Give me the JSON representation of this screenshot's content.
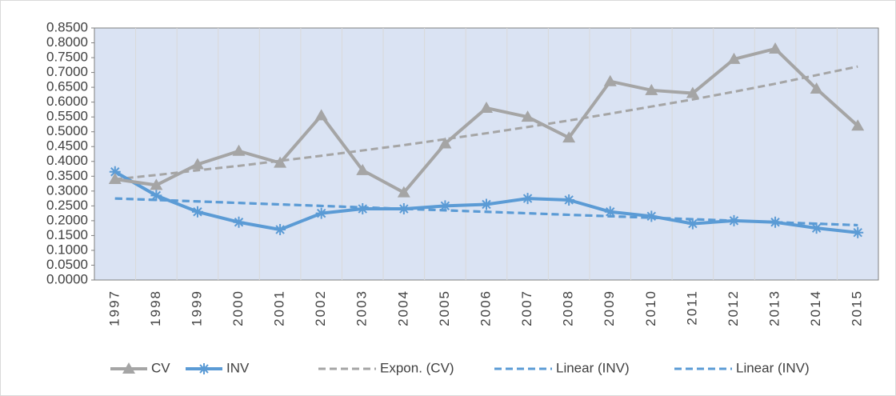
{
  "chart_data": {
    "type": "line",
    "categories": [
      "1997",
      "1998",
      "1999",
      "2000",
      "2001",
      "2002",
      "2003",
      "2004",
      "2005",
      "2006",
      "2007",
      "2008",
      "2009",
      "2010",
      "2011",
      "2012",
      "2013",
      "2014",
      "2015"
    ],
    "series": [
      {
        "name": "CV",
        "color": "#a5a5a5",
        "marker": "triangle",
        "values": [
          0.34,
          0.32,
          0.39,
          0.435,
          0.395,
          0.555,
          0.37,
          0.295,
          0.46,
          0.58,
          0.55,
          0.48,
          0.67,
          0.64,
          0.63,
          0.745,
          0.78,
          0.645,
          0.52
        ]
      },
      {
        "name": "INV",
        "color": "#5b9bd5",
        "marker": "asterisk",
        "values": [
          0.365,
          0.285,
          0.23,
          0.195,
          0.17,
          0.225,
          0.24,
          0.24,
          0.25,
          0.255,
          0.275,
          0.27,
          0.23,
          0.215,
          0.19,
          0.2,
          0.195,
          0.175,
          0.16
        ]
      },
      {
        "name": "Expon. (CV)",
        "color": "#a5a5a5",
        "dashed": true,
        "values": [
          0.34,
          0.354,
          0.37,
          0.385,
          0.402,
          0.419,
          0.437,
          0.455,
          0.475,
          0.495,
          0.516,
          0.538,
          0.561,
          0.585,
          0.609,
          0.635,
          0.662,
          0.691,
          0.72
        ]
      },
      {
        "name": "Linear (INV)",
        "color": "#5b9bd5",
        "dashed": true,
        "values": [
          0.275,
          0.27,
          0.265,
          0.26,
          0.255,
          0.25,
          0.245,
          0.24,
          0.235,
          0.23,
          0.225,
          0.22,
          0.215,
          0.21,
          0.205,
          0.2,
          0.195,
          0.19,
          0.185
        ]
      },
      {
        "name": "Linear (INV)",
        "color": "#5b9bd5",
        "dashed": true,
        "values": [
          0.275,
          0.27,
          0.265,
          0.26,
          0.255,
          0.25,
          0.245,
          0.24,
          0.235,
          0.23,
          0.225,
          0.22,
          0.215,
          0.21,
          0.205,
          0.2,
          0.195,
          0.19,
          0.185
        ]
      }
    ],
    "ylim": [
      0,
      0.85
    ],
    "yticks": [
      {
        "value": 0,
        "label": "0.0000"
      },
      {
        "value": 0.05,
        "label": "0.0500"
      },
      {
        "value": 0.1,
        "label": "0.1000"
      },
      {
        "value": 0.15,
        "label": "0.1500"
      },
      {
        "value": 0.2,
        "label": "0.2000"
      },
      {
        "value": 0.25,
        "label": "0.2500"
      },
      {
        "value": 0.3,
        "label": "0.3000"
      },
      {
        "value": 0.35,
        "label": "0.3500"
      },
      {
        "value": 0.4,
        "label": "0.4000"
      },
      {
        "value": 0.45,
        "label": "0.4500"
      },
      {
        "value": 0.5,
        "label": "0.5000"
      },
      {
        "value": 0.55,
        "label": "0.5500"
      },
      {
        "value": 0.6,
        "label": "0.6000"
      },
      {
        "value": 0.65,
        "label": "0.6500"
      },
      {
        "value": 0.7,
        "label": "0.7000"
      },
      {
        "value": 0.75,
        "label": "0.7500"
      },
      {
        "value": 0.8,
        "label": "0.8000"
      },
      {
        "value": 0.85,
        "label": "0.8500"
      }
    ],
    "xgrid": true,
    "plot_background": "#dae3f3",
    "legend": "bottom"
  }
}
